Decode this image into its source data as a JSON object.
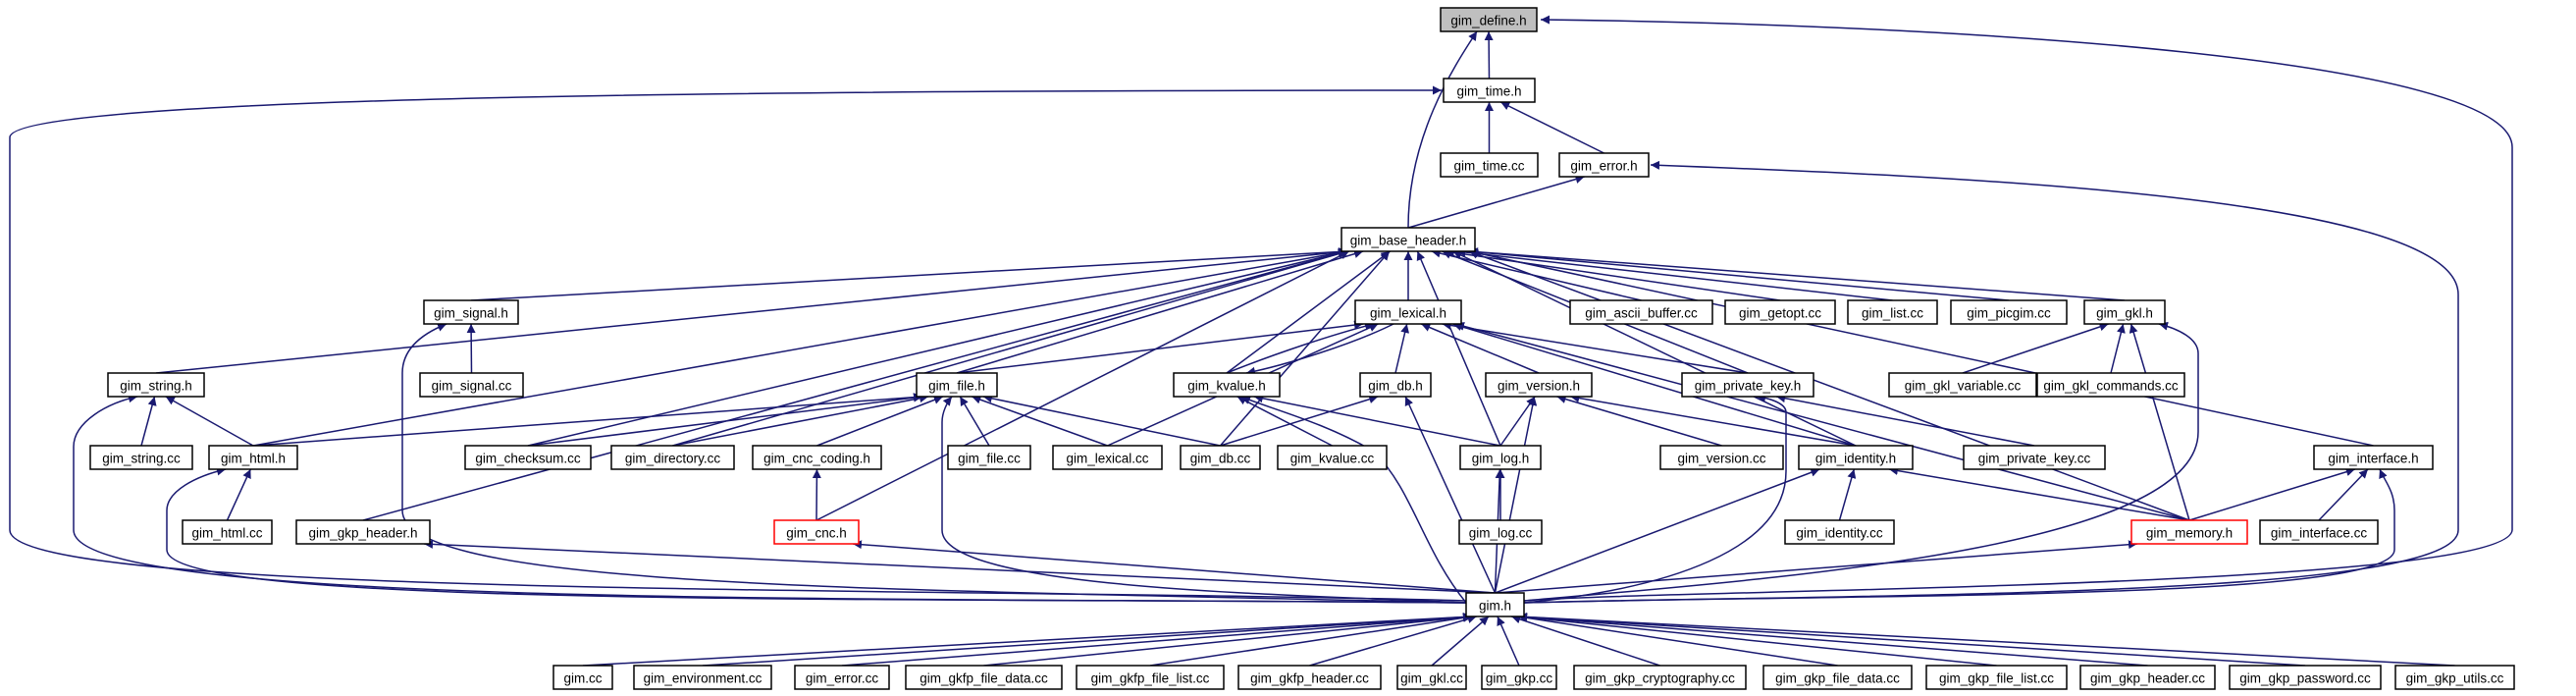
{
  "diagram": {
    "nodes": [
      {
        "id": "gim_define_h",
        "label": "gim_define.h",
        "style": "root"
      },
      {
        "id": "gim_time_h",
        "label": "gim_time.h"
      },
      {
        "id": "gim_time_cc",
        "label": "gim_time.cc"
      },
      {
        "id": "gim_error_h",
        "label": "gim_error.h"
      },
      {
        "id": "gim_base_header_h",
        "label": "gim_base_header.h"
      },
      {
        "id": "gim_signal_h",
        "label": "gim_signal.h"
      },
      {
        "id": "gim_signal_cc",
        "label": "gim_signal.cc"
      },
      {
        "id": "gim_lexical_h",
        "label": "gim_lexical.h"
      },
      {
        "id": "gim_ascii_buffer_cc",
        "label": "gim_ascii_buffer.cc"
      },
      {
        "id": "gim_getopt_cc",
        "label": "gim_getopt.cc"
      },
      {
        "id": "gim_list_cc",
        "label": "gim_list.cc"
      },
      {
        "id": "gim_picgim_cc",
        "label": "gim_picgim.cc"
      },
      {
        "id": "gim_gkl_h",
        "label": "gim_gkl.h"
      },
      {
        "id": "gim_gkl_variable_cc",
        "label": "gim_gkl_variable.cc"
      },
      {
        "id": "gim_gkl_commands_cc",
        "label": "gim_gkl_commands.cc"
      },
      {
        "id": "gim_string_h",
        "label": "gim_string.h"
      },
      {
        "id": "gim_string_cc",
        "label": "gim_string.cc"
      },
      {
        "id": "gim_file_h",
        "label": "gim_file.h"
      },
      {
        "id": "gim_kvalue_h",
        "label": "gim_kvalue.h"
      },
      {
        "id": "gim_db_h",
        "label": "gim_db.h"
      },
      {
        "id": "gim_version_h",
        "label": "gim_version.h"
      },
      {
        "id": "gim_private_key_h",
        "label": "gim_private_key.h"
      },
      {
        "id": "gim_html_h",
        "label": "gim_html.h"
      },
      {
        "id": "gim_checksum_cc",
        "label": "gim_checksum.cc"
      },
      {
        "id": "gim_directory_cc",
        "label": "gim_directory.cc"
      },
      {
        "id": "gim_cnc_coding_h",
        "label": "gim_cnc_coding.h"
      },
      {
        "id": "gim_file_cc",
        "label": "gim_file.cc"
      },
      {
        "id": "gim_lexical_cc",
        "label": "gim_lexical.cc"
      },
      {
        "id": "gim_db_cc",
        "label": "gim_db.cc"
      },
      {
        "id": "gim_kvalue_cc",
        "label": "gim_kvalue.cc"
      },
      {
        "id": "gim_log_h",
        "label": "gim_log.h"
      },
      {
        "id": "gim_version_cc",
        "label": "gim_version.cc"
      },
      {
        "id": "gim_identity_h",
        "label": "gim_identity.h"
      },
      {
        "id": "gim_private_key_cc",
        "label": "gim_private_key.cc"
      },
      {
        "id": "gim_interface_h",
        "label": "gim_interface.h"
      },
      {
        "id": "gim_html_cc",
        "label": "gim_html.cc"
      },
      {
        "id": "gim_gkp_header_h",
        "label": "gim_gkp_header.h"
      },
      {
        "id": "gim_cnc_h",
        "label": "gim_cnc.h",
        "style": "red"
      },
      {
        "id": "gim_log_cc",
        "label": "gim_log.cc"
      },
      {
        "id": "gim_identity_cc",
        "label": "gim_identity.cc"
      },
      {
        "id": "gim_memory_h",
        "label": "gim_memory.h",
        "style": "red"
      },
      {
        "id": "gim_interface_cc",
        "label": "gim_interface.cc"
      },
      {
        "id": "gim_h",
        "label": "gim.h"
      },
      {
        "id": "gim_cc",
        "label": "gim.cc"
      },
      {
        "id": "gim_environment_cc",
        "label": "gim_environment.cc"
      },
      {
        "id": "gim_error_cc",
        "label": "gim_error.cc"
      },
      {
        "id": "gim_gkfp_file_data_cc",
        "label": "gim_gkfp_file_data.cc"
      },
      {
        "id": "gim_gkfp_file_list_cc",
        "label": "gim_gkfp_file_list.cc"
      },
      {
        "id": "gim_gkfp_header_cc",
        "label": "gim_gkfp_header.cc"
      },
      {
        "id": "gim_gkl_cc",
        "label": "gim_gkl.cc"
      },
      {
        "id": "gim_gkp_cc",
        "label": "gim_gkp.cc"
      },
      {
        "id": "gim_gkp_cryptography_cc",
        "label": "gim_gkp_cryptography.cc"
      },
      {
        "id": "gim_gkp_file_data_cc",
        "label": "gim_gkp_file_data.cc"
      },
      {
        "id": "gim_gkp_file_list_cc",
        "label": "gim_gkp_file_list.cc"
      },
      {
        "id": "gim_gkp_header_cc",
        "label": "gim_gkp_header.cc"
      },
      {
        "id": "gim_gkp_password_cc",
        "label": "gim_gkp_password.cc"
      },
      {
        "id": "gim_gkp_utils_cc",
        "label": "gim_gkp_utils.cc"
      }
    ],
    "edges": [
      [
        "gim_time_h",
        "gim_define_h"
      ],
      [
        "gim_base_header_h",
        "gim_define_h"
      ],
      [
        "gim_h",
        "gim_define_h"
      ],
      [
        "gim_time_cc",
        "gim_time_h"
      ],
      [
        "gim_error_h",
        "gim_time_h"
      ],
      [
        "gim_h",
        "gim_time_h"
      ],
      [
        "gim_base_header_h",
        "gim_error_h"
      ],
      [
        "gim_h",
        "gim_error_h"
      ],
      [
        "gim_signal_h",
        "gim_base_header_h"
      ],
      [
        "gim_lexical_h",
        "gim_base_header_h"
      ],
      [
        "gim_ascii_buffer_cc",
        "gim_base_header_h"
      ],
      [
        "gim_getopt_cc",
        "gim_base_header_h"
      ],
      [
        "gim_list_cc",
        "gim_base_header_h"
      ],
      [
        "gim_picgim_cc",
        "gim_base_header_h"
      ],
      [
        "gim_gkl_h",
        "gim_base_header_h"
      ],
      [
        "gim_string_h",
        "gim_base_header_h"
      ],
      [
        "gim_file_h",
        "gim_base_header_h"
      ],
      [
        "gim_kvalue_h",
        "gim_base_header_h"
      ],
      [
        "gim_private_key_h",
        "gim_base_header_h"
      ],
      [
        "gim_html_h",
        "gim_base_header_h"
      ],
      [
        "gim_checksum_cc",
        "gim_base_header_h"
      ],
      [
        "gim_directory_cc",
        "gim_base_header_h"
      ],
      [
        "gim_db_cc",
        "gim_base_header_h"
      ],
      [
        "gim_log_h",
        "gim_base_header_h"
      ],
      [
        "gim_identity_h",
        "gim_base_header_h"
      ],
      [
        "gim_interface_h",
        "gim_base_header_h"
      ],
      [
        "gim_gkp_header_h",
        "gim_base_header_h"
      ],
      [
        "gim_cnc_h",
        "gim_base_header_h"
      ],
      [
        "gim_memory_h",
        "gim_base_header_h"
      ],
      [
        "gim_signal_cc",
        "gim_signal_h"
      ],
      [
        "gim_h",
        "gim_signal_h"
      ],
      [
        "gim_file_h",
        "gim_lexical_h"
      ],
      [
        "gim_kvalue_h",
        "gim_lexical_h"
      ],
      [
        "gim_db_h",
        "gim_lexical_h"
      ],
      [
        "gim_version_h",
        "gim_lexical_h"
      ],
      [
        "gim_private_key_h",
        "gim_lexical_h"
      ],
      [
        "gim_lexical_cc",
        "gim_lexical_h"
      ],
      [
        "gim_identity_h",
        "gim_lexical_h"
      ],
      [
        "gim_memory_h",
        "gim_lexical_h"
      ],
      [
        "gim_lexical_h",
        "gim_kvalue_h"
      ],
      [
        "gim_gkl_variable_cc",
        "gim_gkl_h"
      ],
      [
        "gim_gkl_commands_cc",
        "gim_gkl_h"
      ],
      [
        "gim_memory_h",
        "gim_gkl_h"
      ],
      [
        "gim_h",
        "gim_gkl_h"
      ],
      [
        "gim_string_cc",
        "gim_string_h"
      ],
      [
        "gim_html_h",
        "gim_string_h"
      ],
      [
        "gim_h",
        "gim_string_h"
      ],
      [
        "gim_html_h",
        "gim_file_h"
      ],
      [
        "gim_checksum_cc",
        "gim_file_h"
      ],
      [
        "gim_directory_cc",
        "gim_file_h"
      ],
      [
        "gim_cnc_coding_h",
        "gim_file_h"
      ],
      [
        "gim_file_cc",
        "gim_file_h"
      ],
      [
        "gim_lexical_cc",
        "gim_file_h"
      ],
      [
        "gim_db_cc",
        "gim_file_h"
      ],
      [
        "gim_h",
        "gim_file_h"
      ],
      [
        "gim_kvalue_cc",
        "gim_kvalue_h"
      ],
      [
        "gim_log_h",
        "gim_kvalue_h"
      ],
      [
        "gim_h",
        "gim_kvalue_h"
      ],
      [
        "gim_db_cc",
        "gim_db_h"
      ],
      [
        "gim_h",
        "gim_db_h"
      ],
      [
        "gim_log_h",
        "gim_version_h"
      ],
      [
        "gim_version_cc",
        "gim_version_h"
      ],
      [
        "gim_identity_h",
        "gim_version_h"
      ],
      [
        "gim_h",
        "gim_version_h"
      ],
      [
        "gim_private_key_cc",
        "gim_private_key_h"
      ],
      [
        "gim_h",
        "gim_private_key_h"
      ],
      [
        "gim_html_cc",
        "gim_html_h"
      ],
      [
        "gim_h",
        "gim_html_h"
      ],
      [
        "gim_cnc_h",
        "gim_cnc_coding_h"
      ],
      [
        "gim_log_cc",
        "gim_log_h"
      ],
      [
        "gim_h",
        "gim_log_h"
      ],
      [
        "gim_identity_cc",
        "gim_identity_h"
      ],
      [
        "gim_memory_h",
        "gim_identity_h"
      ],
      [
        "gim_h",
        "gim_identity_h"
      ],
      [
        "gim_memory_h",
        "gim_interface_h"
      ],
      [
        "gim_interface_cc",
        "gim_interface_h"
      ],
      [
        "gim_h",
        "gim_interface_h"
      ],
      [
        "gim_h",
        "gim_gkp_header_h"
      ],
      [
        "gim_h",
        "gim_cnc_h"
      ],
      [
        "gim_h",
        "gim_memory_h"
      ],
      [
        "gim_cc",
        "gim_h"
      ],
      [
        "gim_environment_cc",
        "gim_h"
      ],
      [
        "gim_error_cc",
        "gim_h"
      ],
      [
        "gim_gkfp_file_data_cc",
        "gim_h"
      ],
      [
        "gim_gkfp_file_list_cc",
        "gim_h"
      ],
      [
        "gim_gkfp_header_cc",
        "gim_h"
      ],
      [
        "gim_gkl_cc",
        "gim_h"
      ],
      [
        "gim_gkp_cc",
        "gim_h"
      ],
      [
        "gim_gkp_cryptography_cc",
        "gim_h"
      ],
      [
        "gim_gkp_file_data_cc",
        "gim_h"
      ],
      [
        "gim_gkp_file_list_cc",
        "gim_h"
      ],
      [
        "gim_gkp_header_cc",
        "gim_h"
      ],
      [
        "gim_gkp_password_cc",
        "gim_h"
      ],
      [
        "gim_gkp_utils_cc",
        "gim_h"
      ]
    ]
  }
}
